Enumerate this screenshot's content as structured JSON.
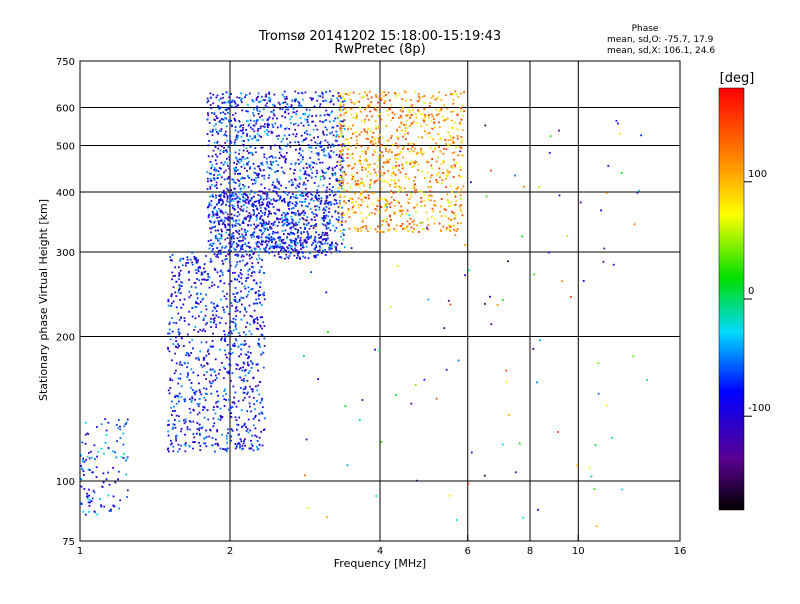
{
  "chart_data": {
    "type": "scatter",
    "title": "Tromsø 20141202 15:18:00-15:19:43",
    "subtitle": "RwPretec (8p)",
    "xlabel": "Frequency [MHz]",
    "ylabel": "Stationary phase Virtual Height [km]",
    "x_scale": "log",
    "y_scale": "log",
    "xlim": [
      1,
      16
    ],
    "ylim": [
      75,
      750
    ],
    "x_ticks": [
      1,
      2,
      4,
      6,
      8,
      10,
      16
    ],
    "x_tick_labels": [
      "1",
      "2",
      "4",
      "6",
      "8",
      "10",
      "16"
    ],
    "x_gridlines": [
      2,
      4,
      6,
      8,
      10
    ],
    "y_ticks": [
      75,
      100,
      200,
      300,
      400,
      500,
      600,
      750
    ],
    "y_tick_labels": [
      "75",
      "100",
      "200",
      "300",
      "400",
      "500",
      "600",
      "750"
    ],
    "y_gridlines": [
      100,
      200,
      300,
      400,
      500,
      600
    ],
    "grid": true,
    "phase_stats": {
      "title": "Phase",
      "o_mode": "mean, sd,O: -75.7, 17.9",
      "x_mode": "mean, sd,X: 106.1, 24.6"
    },
    "colorbar": {
      "label": "[deg]",
      "min": -180,
      "max": 180,
      "ticks": [
        100,
        0,
        -100
      ],
      "tick_labels": [
        "100",
        "0",
        "-100"
      ],
      "colormap": "rainbow (black-purple-blue-cyan-green-yellow-red)"
    },
    "series": [
      {
        "group": "low_frequency_echoes",
        "freq_range": [
          1.0,
          1.25
        ],
        "height_range": [
          85,
          135
        ],
        "phase_range": [
          -115,
          -20
        ]
      },
      {
        "group": "E_layer_trace",
        "freq_range": [
          1.5,
          2.35
        ],
        "height_range": [
          115,
          300
        ],
        "phase_range": [
          -125,
          -40
        ]
      },
      {
        "group": "F_layer_lower_trace_O",
        "freq_range": [
          1.85,
          3.2
        ],
        "height_range": [
          290,
          400
        ],
        "phase_range": [
          -130,
          -40
        ]
      },
      {
        "group": "F_layer_spread_O",
        "freq_range": [
          1.8,
          3.4
        ],
        "height_range": [
          300,
          650
        ],
        "phase_range": [
          -130,
          -30
        ]
      },
      {
        "group": "F_layer_X_mode",
        "freq_range": [
          3.3,
          5.9
        ],
        "height_range": [
          330,
          650
        ],
        "phase_range": [
          60,
          160
        ]
      },
      {
        "group": "scattered_points",
        "freq_range": [
          2.8,
          14
        ],
        "height_range": [
          80,
          600
        ],
        "phase_range": [
          -160,
          170
        ]
      }
    ]
  }
}
